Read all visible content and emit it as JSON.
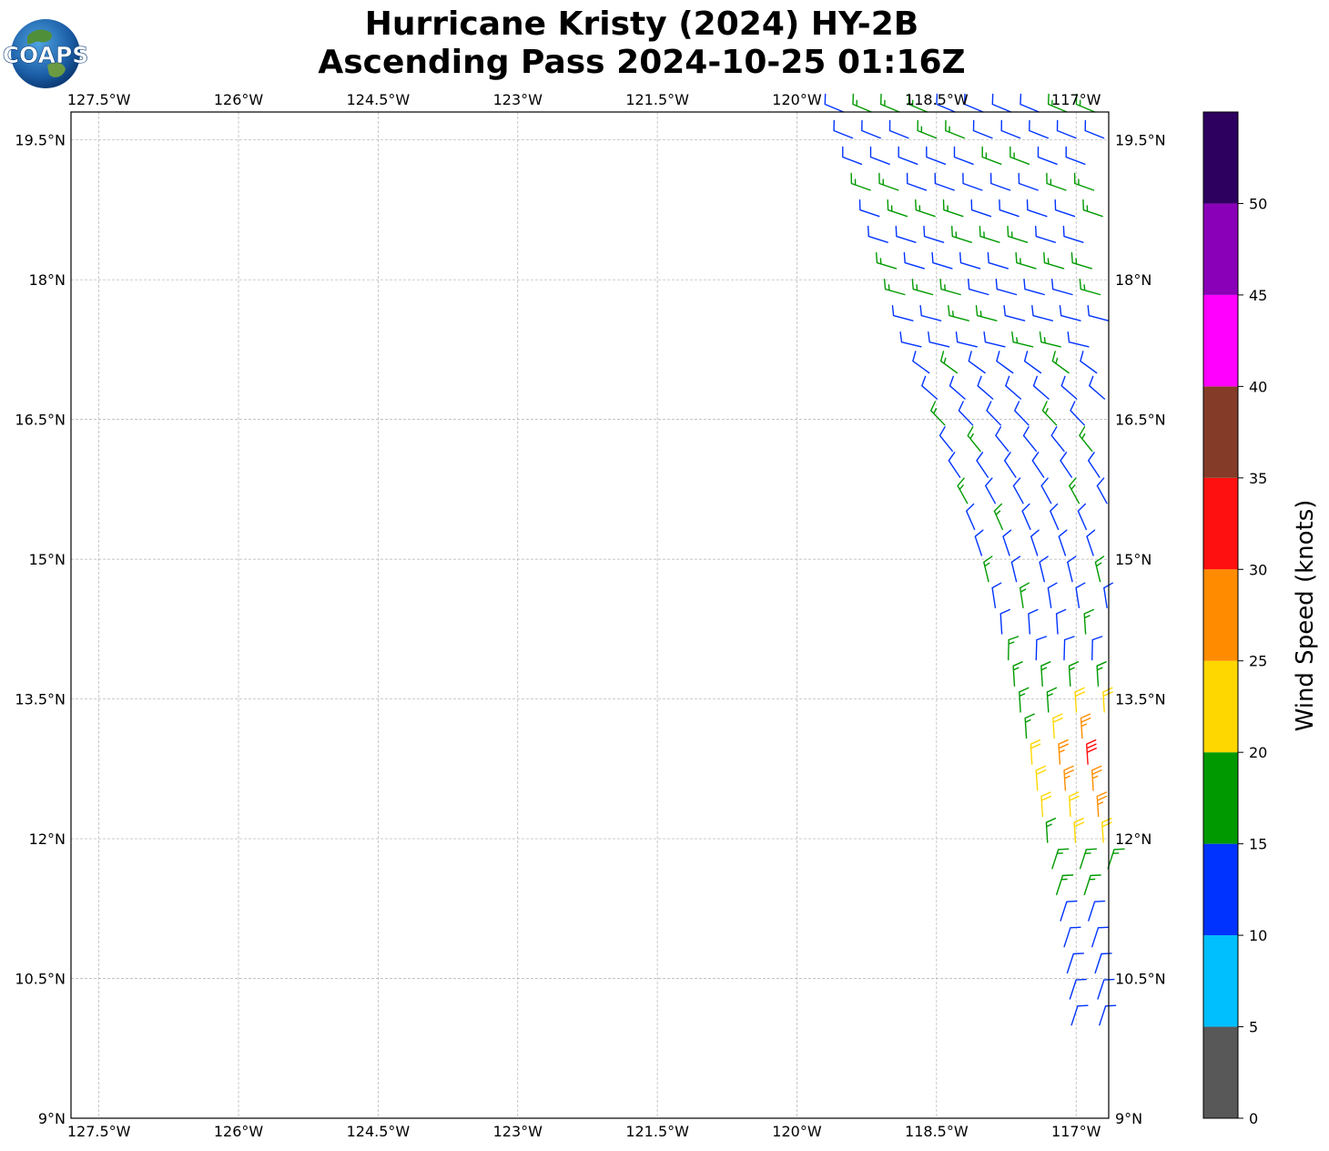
{
  "title": {
    "line1": "Hurricane Kristy (2024) HY-2B",
    "line2": "Ascending Pass 2024-10-25 01:16Z"
  },
  "logo": {
    "text": "COAPS"
  },
  "map": {
    "lon_range": [
      -127.8,
      -116.65
    ],
    "lat_range": [
      9.0,
      19.8
    ],
    "grid": true,
    "lon_ticks": [
      {
        "value": -127.5,
        "label": "127.5°W"
      },
      {
        "value": -126.0,
        "label": "126°W"
      },
      {
        "value": -124.5,
        "label": "124.5°W"
      },
      {
        "value": -123.0,
        "label": "123°W"
      },
      {
        "value": -121.5,
        "label": "121.5°W"
      },
      {
        "value": -120.0,
        "label": "120°W"
      },
      {
        "value": -118.5,
        "label": "118.5°W"
      },
      {
        "value": -117.0,
        "label": "117°W"
      }
    ],
    "lat_ticks": [
      {
        "value": 19.5,
        "label": "19.5°N"
      },
      {
        "value": 18.0,
        "label": "18°N"
      },
      {
        "value": 16.5,
        "label": "16.5°N"
      },
      {
        "value": 15.0,
        "label": "15°N"
      },
      {
        "value": 13.5,
        "label": "13.5°N"
      },
      {
        "value": 12.0,
        "label": "12°N"
      },
      {
        "value": 10.5,
        "label": "10.5°N"
      },
      {
        "value": 9.0,
        "label": "9°N"
      }
    ]
  },
  "colorbar": {
    "label": "Wind Speed (knots)",
    "ticks": [
      "0",
      "5",
      "10",
      "15",
      "20",
      "25",
      "30",
      "35",
      "40",
      "45",
      "50"
    ],
    "bins": [
      {
        "min": 0,
        "max": 5,
        "color": "#585858"
      },
      {
        "min": 5,
        "max": 10,
        "color": "#00bfff"
      },
      {
        "min": 10,
        "max": 15,
        "color": "#0033ff"
      },
      {
        "min": 15,
        "max": 20,
        "color": "#009a00"
      },
      {
        "min": 20,
        "max": 25,
        "color": "#ffd700"
      },
      {
        "min": 25,
        "max": 30,
        "color": "#ff8c00"
      },
      {
        "min": 30,
        "max": 35,
        "color": "#ff1010"
      },
      {
        "min": 35,
        "max": 40,
        "color": "#843c28"
      },
      {
        "min": 40,
        "max": 45,
        "color": "#ff00ff"
      },
      {
        "min": 45,
        "max": 50,
        "color": "#8a00b8"
      },
      {
        "min": 50,
        "max": 55,
        "color": "#2d0060"
      }
    ]
  },
  "swath": {
    "lat_bottom": 10.0,
    "lat_top": 19.8,
    "lat_step": 0.28,
    "columns": 6,
    "col_spacing": 0.3,
    "left_edge_at_bottom": -117.05,
    "left_edge_at_top": -119.5,
    "right_edge": -116.65
  }
}
